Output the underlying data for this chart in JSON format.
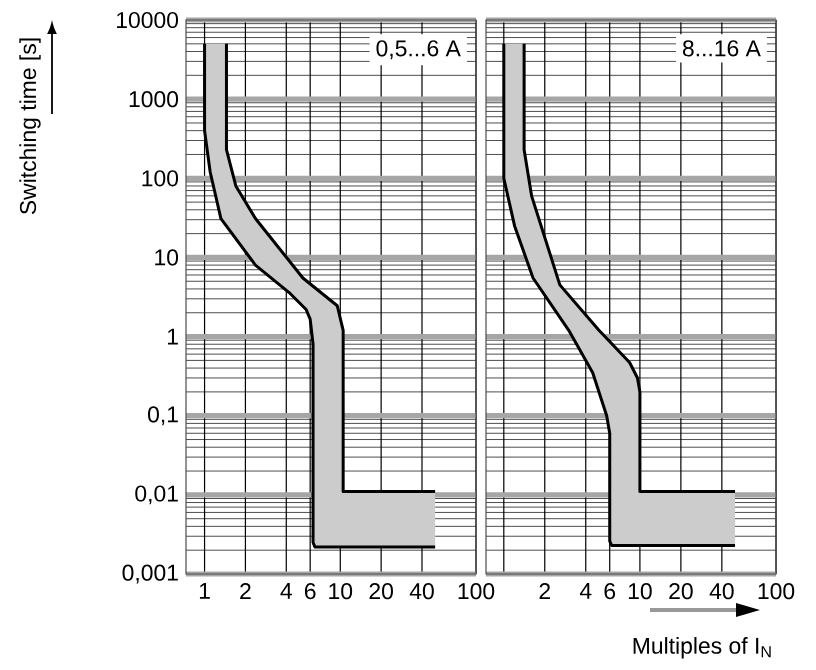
{
  "chart_data": [
    {
      "type": "line",
      "ylabel": "Switching time [s]",
      "annotations": [
        "0,5...6 A"
      ],
      "log": "xy",
      "grid": true,
      "xlim": [
        0.73,
        100
      ],
      "ylim": [
        0.001,
        10000
      ],
      "xticks": [
        1,
        2,
        4,
        6,
        10,
        20,
        40,
        100
      ],
      "yticks": [
        {
          "value": 0.001,
          "label": "0,001"
        },
        {
          "value": 0.01,
          "label": "0,01"
        },
        {
          "value": 0.1,
          "label": "0,1"
        },
        1,
        10,
        100,
        1000,
        10000
      ],
      "series": [
        {
          "color": "#000000",
          "x": [
            1,
            1,
            1.1,
            1.32,
            2.37,
            4.2,
            5.6,
            6.0,
            6.3,
            6.3,
            6.5,
            50
          ],
          "values": [
            5000,
            400,
            120,
            31,
            8,
            3.6,
            2.2,
            1.66,
            0.8,
            0.0025,
            0.0022,
            0.0022
          ]
        },
        {
          "color": "#000000",
          "x": [
            1.45,
            1.45,
            1.7,
            2.37,
            5.3,
            9.5,
            10.5,
            10.5,
            50
          ],
          "values": [
            5000,
            230,
            80,
            31,
            5.5,
            2.45,
            1.2,
            0.011,
            0.011
          ]
        }
      ]
    },
    {
      "type": "line",
      "xlabel": "Multiples of I$_{N}$",
      "annotations": [
        "8...16 A"
      ],
      "log": "xy",
      "grid": true,
      "xlim": [
        0.74,
        100
      ],
      "ylim": [
        0.001,
        10000
      ],
      "tick_labels": "x",
      "xticks": [
        {
          "value": 1,
          "label": null
        },
        2,
        4,
        6,
        10,
        20,
        40,
        100
      ],
      "yticks": [
        {
          "value": 0.001,
          "label": null
        },
        {
          "value": 0.01,
          "label": null
        },
        {
          "value": 0.1,
          "label": null
        },
        1,
        10,
        100,
        1000,
        10000
      ],
      "series": [
        {
          "color": "#000000",
          "x": [
            1,
            1,
            1.2,
            1.64,
            3,
            4.5,
            5.7,
            6,
            6,
            6.2,
            50
          ],
          "values": [
            5000,
            100,
            25,
            5.5,
            1.2,
            0.35,
            0.1,
            0.06,
            0.0026,
            0.0023,
            0.0023
          ]
        },
        {
          "color": "#000000",
          "x": [
            1.41,
            1.41,
            1.6,
            2.58,
            5,
            8.4,
            9.6,
            10,
            10,
            50
          ],
          "values": [
            5000,
            230,
            60,
            4.5,
            1.2,
            0.47,
            0.3,
            0.2,
            0.011,
            0.011
          ]
        }
      ]
    }
  ]
}
